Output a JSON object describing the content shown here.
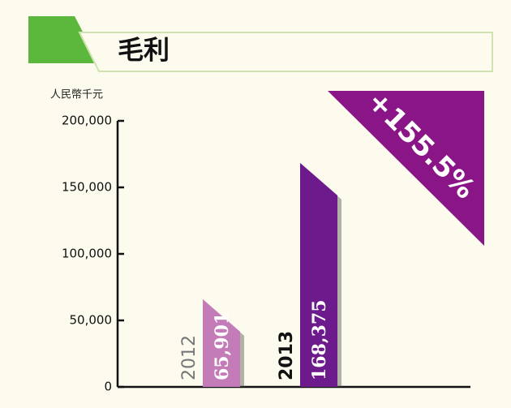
{
  "chart_data": {
    "type": "bar",
    "title": "毛利",
    "y_label": "人民幣千元",
    "categories": [
      "2012",
      "2013"
    ],
    "values": [
      65901,
      168375
    ],
    "value_labels": [
      "65,901",
      "168,375"
    ],
    "colors": [
      "#c47cb8",
      "#6c1a8c"
    ],
    "ylim": [
      0,
      200000
    ],
    "yticks": [
      0,
      {
        "value": 50000,
        "label": "50,000"
      },
      {
        "value": 100000,
        "label": "100,000"
      },
      {
        "value": 150000,
        "label": "150,000"
      },
      {
        "value": 200000,
        "label": "200,000"
      }
    ],
    "annotation": "+155.5%",
    "annotation_color": "#8a1587"
  }
}
